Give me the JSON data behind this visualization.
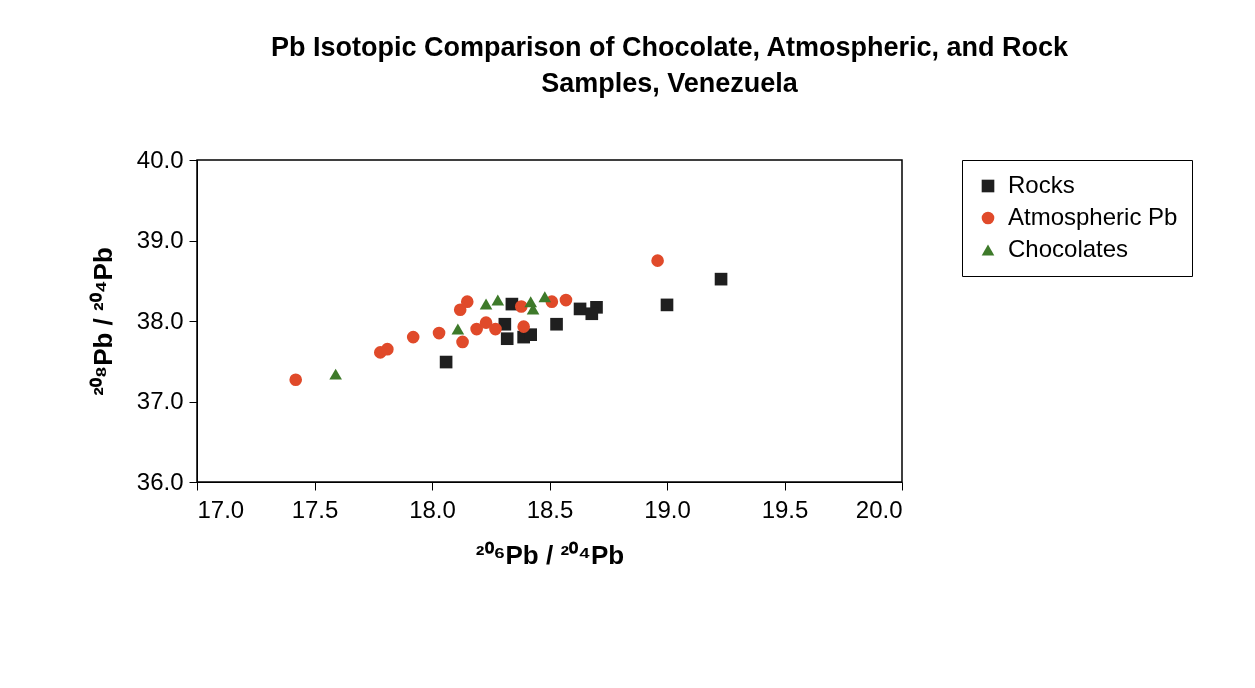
{
  "chart_data": {
    "type": "scatter",
    "title": "Pb Isotopic Comparison of Chocolate, Atmospheric, and Rock Samples, Venezuela",
    "xlabel": "²⁰⁶Pb / ²⁰⁴Pb",
    "ylabel": "²⁰⁸Pb / ²⁰⁴Pb",
    "xlim": [
      17,
      20
    ],
    "ylim": [
      36,
      40
    ],
    "xticks": [
      {
        "value": 17,
        "label": "17.0"
      },
      {
        "value": 17.5,
        "label": "17.5"
      },
      {
        "value": 18,
        "label": "18.0"
      },
      {
        "value": 18.5,
        "label": "18.5"
      },
      {
        "value": 19,
        "label": "19.0"
      },
      {
        "value": 19.5,
        "label": "19.5"
      },
      {
        "value": 20,
        "label": "20.0"
      }
    ],
    "yticks": [
      {
        "value": 36,
        "label": "36.0"
      },
      {
        "value": 37,
        "label": "37.0"
      },
      {
        "value": 38,
        "label": "38.0"
      },
      {
        "value": 39,
        "label": "39.0"
      },
      {
        "value": 40,
        "label": "40.0"
      }
    ],
    "grid": false,
    "legend": "right",
    "series": [
      {
        "name": "Rocks",
        "color": "#1f1f1f",
        "marker": "square",
        "x": [
          18.06,
          18.34,
          18.31,
          18.32,
          18.39,
          18.42,
          18.53,
          18.63,
          18.7,
          18.68,
          19.23,
          19.0
        ],
        "values": [
          37.49,
          38.21,
          37.96,
          37.78,
          37.8,
          37.83,
          37.96,
          38.15,
          38.17,
          38.09,
          38.52,
          38.2
        ]
      },
      {
        "name": "Atmospheric Pb",
        "color": "#e04a2a",
        "marker": "circle",
        "x": [
          17.42,
          17.78,
          17.81,
          17.92,
          18.03,
          18.12,
          18.15,
          18.13,
          18.19,
          18.23,
          18.27,
          18.38,
          18.39,
          18.51,
          18.57,
          18.96
        ],
        "values": [
          37.27,
          37.61,
          37.65,
          37.8,
          37.85,
          38.14,
          38.24,
          37.74,
          37.9,
          37.98,
          37.9,
          38.18,
          37.93,
          38.24,
          38.26,
          38.75
        ]
      },
      {
        "name": "Chocolates",
        "color": "#3e7a2a",
        "marker": "triangle",
        "x": [
          17.59,
          18.11,
          18.23,
          18.28,
          18.42,
          18.43,
          18.48
        ],
        "values": [
          37.34,
          37.9,
          38.21,
          38.26,
          38.24,
          38.15,
          38.3
        ]
      }
    ]
  }
}
